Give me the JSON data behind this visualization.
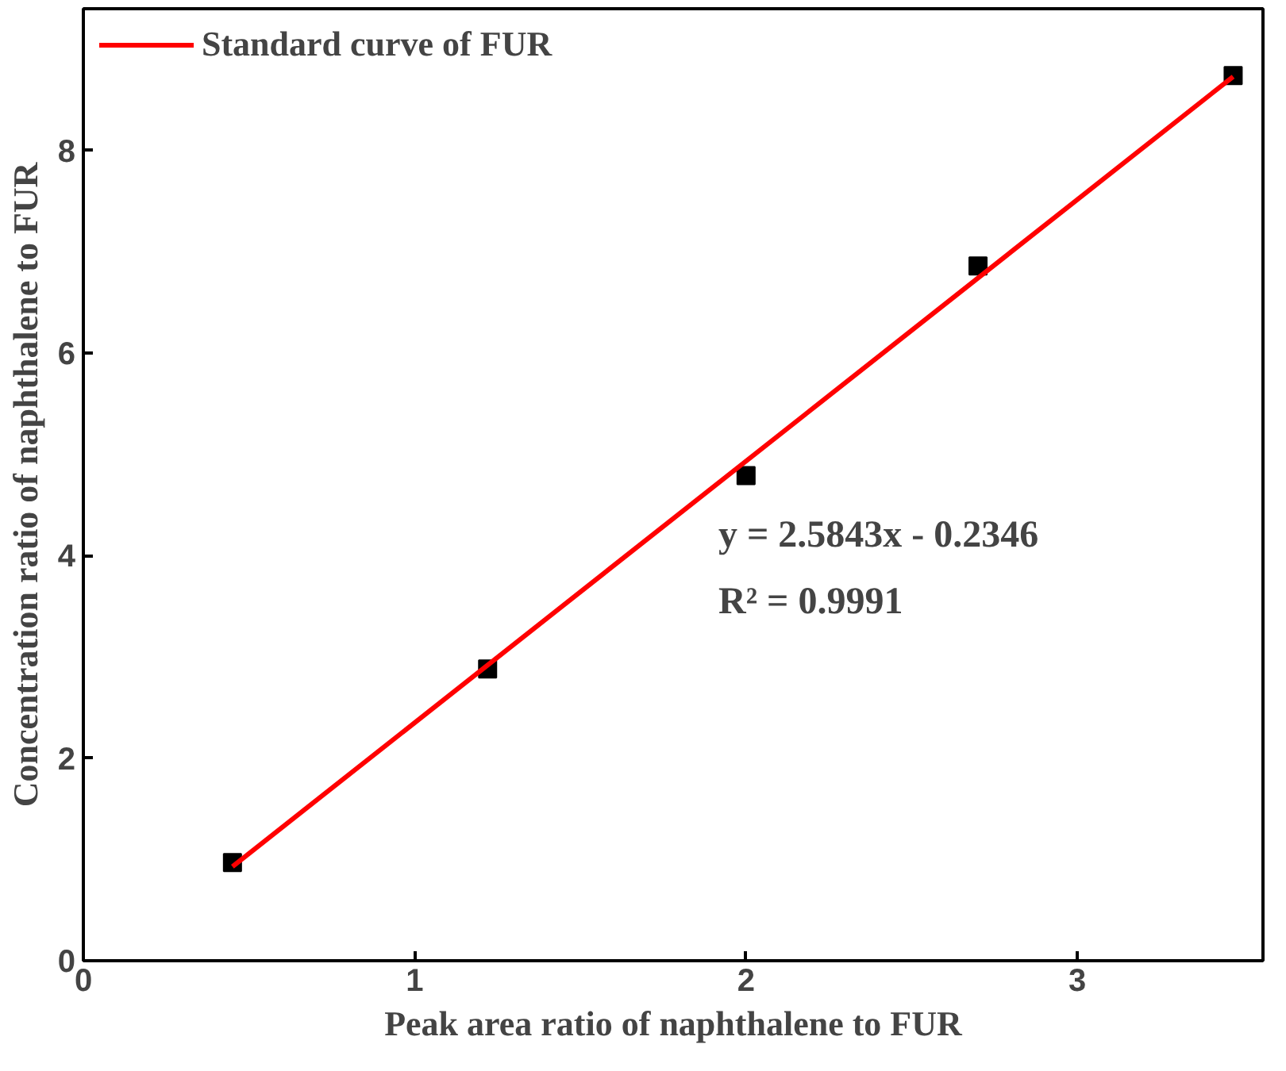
{
  "chart_data": {
    "type": "scatter",
    "xlabel": "Peak area ratio of naphthalene to FUR",
    "ylabel": "Concentration ratio of naphthalene to FUR",
    "xlim": [
      0,
      3.56
    ],
    "ylim": [
      0,
      9.4
    ],
    "xticks": [
      0,
      1,
      2,
      3
    ],
    "yticks": [
      0,
      2,
      4,
      6,
      8
    ],
    "grid": false,
    "legend": "top left",
    "series": [
      {
        "color": "#000000",
        "marker": "square",
        "x": [
          0.45,
          1.22,
          2.0,
          2.7,
          3.47
        ],
        "values": [
          0.97,
          2.88,
          4.79,
          6.86,
          8.74
        ]
      },
      {
        "type": "line",
        "marker": "none",
        "name": "Standard curve of FUR",
        "color": "#ff0000",
        "x": [
          0.45,
          3.47
        ],
        "values": [
          0.93,
          8.73
        ]
      }
    ],
    "annotations": [
      "y = 2.5843x - 0.2346",
      "R² = 0.9991"
    ]
  }
}
